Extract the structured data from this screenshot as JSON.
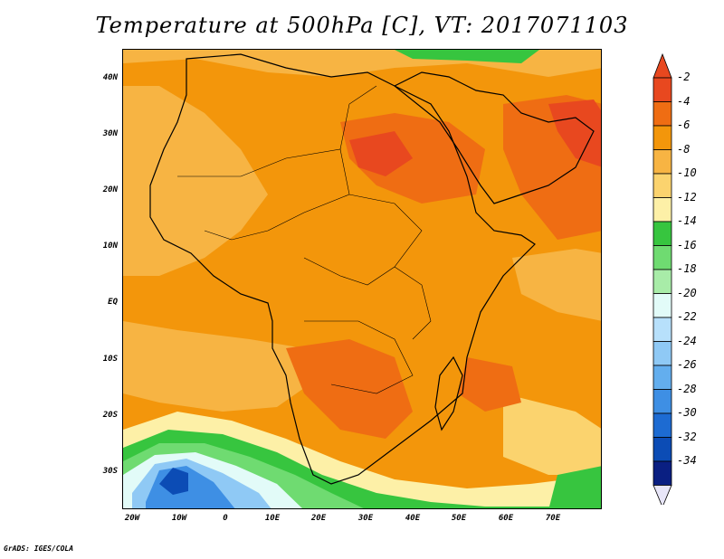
{
  "title": "Temperature at 500hPa [C], VT: 2017071103",
  "credit": "GrADS: IGES/COLA",
  "map": {
    "variable": "Temperature at 500hPa",
    "units": "C",
    "valid_time": "2017071103",
    "region": "Africa",
    "lon_range": [
      -20,
      80
    ],
    "lat_range": [
      -36,
      45
    ],
    "lat_labels": [
      "40N",
      "30N",
      "20N",
      "10N",
      "EQ",
      "10S",
      "20S",
      "30S"
    ],
    "lon_labels": [
      "20W",
      "10W",
      "0",
      "10E",
      "20E",
      "30E",
      "40E",
      "50E",
      "60E",
      "70E"
    ]
  },
  "colorbar": {
    "labels": [
      "-2",
      "-4",
      "-6",
      "-8",
      "-10",
      "-12",
      "-14",
      "-16",
      "-18",
      "-20",
      "-22",
      "-24",
      "-26",
      "-28",
      "-30",
      "-32",
      "-34"
    ],
    "colors": [
      "#e8481f",
      "#ef6d13",
      "#f3960b",
      "#f7b443",
      "#fbd36e",
      "#fdf0a7",
      "#37c53f",
      "#6fdb71",
      "#a8eca8",
      "#e2fbf8",
      "#b7e0fb",
      "#8fc9f5",
      "#63aeee",
      "#3e8fe4",
      "#1d6bd2",
      "#0c4cb5",
      "#0a1f82"
    ],
    "top_arrow_color": "#e8481f",
    "bottom_arrow_color": "#e8e6f8"
  }
}
